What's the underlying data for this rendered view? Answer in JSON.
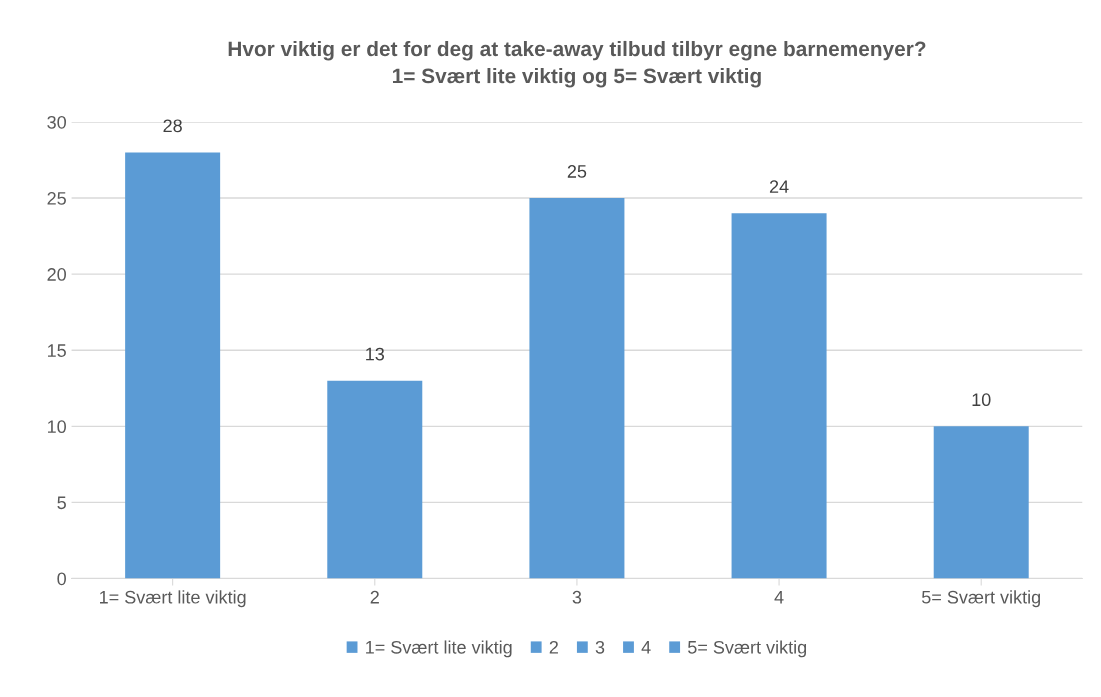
{
  "chart_data": {
    "type": "bar",
    "title": "Hvor viktig er det for deg at take-away tilbud tilbyr egne barnemenyer?\n1= Svært lite viktig og 5= Svært viktig",
    "categories": [
      "1= Svært lite viktig",
      "2",
      "3",
      "4",
      "5= Svært viktig"
    ],
    "series": [
      {
        "name": "1= Svært lite viktig",
        "color": "#5b9bd5",
        "values": [
          28,
          null,
          null,
          null,
          null
        ]
      },
      {
        "name": "2",
        "color": "#5b9bd5",
        "values": [
          null,
          13,
          null,
          null,
          null
        ]
      },
      {
        "name": "3",
        "color": "#5b9bd5",
        "values": [
          null,
          null,
          25,
          null,
          null
        ]
      },
      {
        "name": "4",
        "color": "#5b9bd5",
        "values": [
          null,
          null,
          null,
          24,
          null
        ]
      },
      {
        "name": "5= Svært viktig",
        "color": "#5b9bd5",
        "values": [
          null,
          null,
          null,
          null,
          10
        ]
      }
    ],
    "stacked": true,
    "ylim": [
      0,
      30
    ],
    "yticks": [
      0,
      5,
      10,
      15,
      20,
      25,
      30
    ],
    "grid": "y",
    "data_labels": true,
    "legend": "bottom"
  }
}
